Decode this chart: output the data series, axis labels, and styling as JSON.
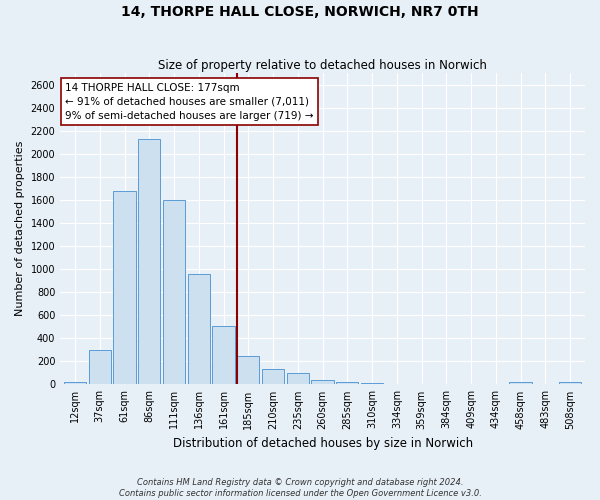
{
  "title": "14, THORPE HALL CLOSE, NORWICH, NR7 0TH",
  "subtitle": "Size of property relative to detached houses in Norwich",
  "xlabel": "Distribution of detached houses by size in Norwich",
  "ylabel": "Number of detached properties",
  "footnote1": "Contains HM Land Registry data © Crown copyright and database right 2024.",
  "footnote2": "Contains public sector information licensed under the Open Government Licence v3.0.",
  "bar_labels": [
    "12sqm",
    "37sqm",
    "61sqm",
    "86sqm",
    "111sqm",
    "136sqm",
    "161sqm",
    "185sqm",
    "210sqm",
    "235sqm",
    "260sqm",
    "285sqm",
    "310sqm",
    "334sqm",
    "359sqm",
    "384sqm",
    "409sqm",
    "434sqm",
    "458sqm",
    "483sqm",
    "508sqm"
  ],
  "bar_values": [
    20,
    300,
    1680,
    2130,
    1600,
    960,
    510,
    250,
    130,
    100,
    40,
    20,
    10,
    5,
    5,
    5,
    5,
    3,
    20,
    3,
    20
  ],
  "bar_color": "#cce0f0",
  "bar_edge_color": "#5b9bd5",
  "vline_color": "#8b0000",
  "annotation_title": "14 THORPE HALL CLOSE: 177sqm",
  "annotation_line1": "← 91% of detached houses are smaller (7,011)",
  "annotation_line2": "9% of semi-detached houses are larger (719) →",
  "ylim": [
    0,
    2700
  ],
  "yticks": [
    0,
    200,
    400,
    600,
    800,
    1000,
    1200,
    1400,
    1600,
    1800,
    2000,
    2200,
    2400,
    2600
  ],
  "annotation_box_color": "#ffffff",
  "annotation_box_edge": "#8b0000",
  "bg_color": "#e8f0f7",
  "grid_color": "#ffffff",
  "title_fontsize": 10,
  "subtitle_fontsize": 8.5,
  "ylabel_fontsize": 8,
  "xlabel_fontsize": 8.5,
  "tick_fontsize": 7,
  "footnote_fontsize": 6,
  "ann_fontsize": 7.5
}
